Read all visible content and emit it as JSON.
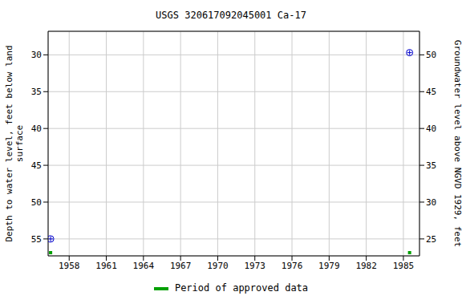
{
  "chart_data": {
    "type": "scatter",
    "title": "USGS 320617092045001 Ca-17",
    "y_label": "Depth to water level, feet below land\nsurface",
    "y2_label": "Groundwater level above NGVD 1929, feet",
    "xlim": [
      1956.3,
      1986.3
    ],
    "xticks": [
      1958,
      1961,
      1964,
      1967,
      1970,
      1973,
      1976,
      1979,
      1982,
      1985
    ],
    "ylim": [
      57.3,
      26.8
    ],
    "yticks": [
      30,
      35,
      40,
      45,
      50,
      55
    ],
    "y2lim": [
      22.7,
      53.2
    ],
    "y2ticks": [
      25,
      30,
      35,
      40,
      45,
      50
    ],
    "grid": true,
    "series": [
      {
        "color": "#0000cc",
        "marker": "circle",
        "x": [
          1956.5,
          1985.5
        ],
        "values": [
          55,
          29.7
        ]
      }
    ],
    "approved_data": {
      "name": "Period of approved data",
      "color": "#00a000",
      "x": [
        1956.5,
        1985.5
      ]
    }
  }
}
